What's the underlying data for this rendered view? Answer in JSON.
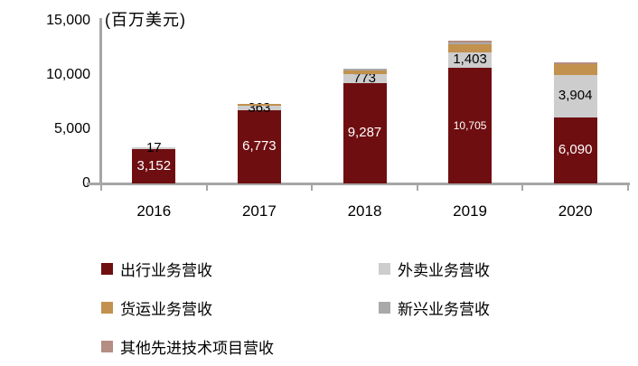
{
  "unit_label": "(百万美元)",
  "colors": {
    "axis": "#a6a6a6",
    "background": "#ffffff",
    "text": "#000000"
  },
  "chart_data": {
    "type": "bar",
    "stacked": true,
    "title": "",
    "unit_label": "(百万美元)",
    "categories": [
      "2016",
      "2017",
      "2018",
      "2019",
      "2020"
    ],
    "series": [
      {
        "name": "出行业务营收",
        "color": "#6f0e11",
        "values": [
          3152,
          6773,
          9287,
          10705,
          6090
        ],
        "data_labels": [
          "3,152",
          "6,773",
          "9,287",
          "10,705",
          "6,090"
        ],
        "label_color": "#ffffff",
        "label_position": "inside-center"
      },
      {
        "name": "外卖业务营收",
        "color": "#cdcdcd",
        "values": [
          17,
          363,
          773,
          1403,
          3904
        ],
        "data_labels": [
          "17",
          "363",
          "773",
          "1,403",
          "3,904"
        ],
        "label_color": "#000000",
        "label_position": "inside-center"
      },
      {
        "name": "货运业务营收",
        "color": "#c2914e",
        "values": [
          0,
          70,
          360,
          730,
          1010
        ],
        "estimated_from_pixels": true
      },
      {
        "name": "新兴业务营收",
        "color": "#a9a9a9",
        "values": [
          0,
          0,
          160,
          200,
          0
        ],
        "estimated_from_pixels": true
      },
      {
        "name": "其他先进技术项目营收",
        "color": "#b58d82",
        "values": [
          0,
          0,
          0,
          40,
          160
        ],
        "estimated_from_pixels": true
      }
    ],
    "ylim": [
      0,
      15000
    ],
    "yticks": [
      {
        "value": 0,
        "label": "0"
      },
      {
        "value": 5000,
        "label": "5,000"
      },
      {
        "value": 10000,
        "label": "10,000"
      },
      {
        "value": 15000,
        "label": "15,000"
      }
    ],
    "grid": false,
    "legend_position": "bottom",
    "legend_columns": [
      [
        0,
        2,
        4
      ],
      [
        1,
        3
      ]
    ]
  }
}
